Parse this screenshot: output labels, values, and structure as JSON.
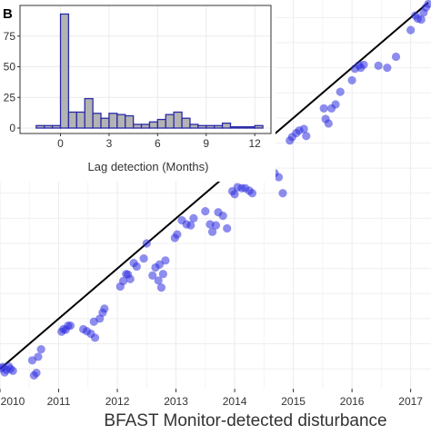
{
  "chart_data": [
    {
      "type": "scatter",
      "xlabel": "BFAST Monitor-detected disturbance",
      "xlim": [
        2010.0,
        2017.3
      ],
      "ylim": [
        2009.75,
        2017.35
      ],
      "x_ticks": [
        "2010",
        "2011",
        "2012",
        "2013",
        "2014",
        "2015",
        "2016",
        "2017"
      ],
      "grid": true,
      "reference_line": {
        "from": [
          2010.0,
          2010.0
        ],
        "to": [
          2017.3,
          2017.3
        ]
      },
      "point_color": "#2f2fe0",
      "points": [
        [
          2010.02,
          2010.01
        ],
        [
          2010.05,
          2010.04
        ],
        [
          2010.08,
          2009.93
        ],
        [
          2010.11,
          2009.98
        ],
        [
          2010.15,
          2010.05
        ],
        [
          2010.18,
          2010.0
        ],
        [
          2010.22,
          2009.96
        ],
        [
          2010.55,
          2010.17
        ],
        [
          2010.58,
          2009.87
        ],
        [
          2010.62,
          2009.92
        ],
        [
          2010.65,
          2010.24
        ],
        [
          2010.7,
          2010.39
        ],
        [
          2011.05,
          2010.74
        ],
        [
          2011.08,
          2010.79
        ],
        [
          2011.12,
          2010.78
        ],
        [
          2011.16,
          2010.86
        ],
        [
          2011.2,
          2010.86
        ],
        [
          2011.42,
          2010.79
        ],
        [
          2011.48,
          2010.75
        ],
        [
          2011.55,
          2010.7
        ],
        [
          2011.6,
          2010.94
        ],
        [
          2011.62,
          2010.62
        ],
        [
          2011.7,
          2011.0
        ],
        [
          2011.75,
          2011.12
        ],
        [
          2011.78,
          2011.2
        ],
        [
          2012.05,
          2011.64
        ],
        [
          2012.1,
          2011.75
        ],
        [
          2012.15,
          2011.89
        ],
        [
          2012.18,
          2011.88
        ],
        [
          2012.22,
          2011.79
        ],
        [
          2012.28,
          2012.11
        ],
        [
          2012.33,
          2012.04
        ],
        [
          2012.45,
          2012.2
        ],
        [
          2012.5,
          2012.5
        ],
        [
          2012.6,
          2011.86
        ],
        [
          2012.65,
          2012.02
        ],
        [
          2012.7,
          2011.76
        ],
        [
          2012.72,
          2012.08
        ],
        [
          2012.75,
          2011.62
        ],
        [
          2012.78,
          2011.89
        ],
        [
          2012.82,
          2012.16
        ],
        [
          2012.98,
          2012.61
        ],
        [
          2013.02,
          2012.68
        ],
        [
          2013.1,
          2012.96
        ],
        [
          2013.18,
          2012.88
        ],
        [
          2013.25,
          2012.86
        ],
        [
          2013.3,
          2013.0
        ],
        [
          2013.5,
          2013.14
        ],
        [
          2013.58,
          2012.88
        ],
        [
          2013.62,
          2012.73
        ],
        [
          2013.68,
          2012.86
        ],
        [
          2013.72,
          2013.12
        ],
        [
          2013.8,
          2013.05
        ],
        [
          2013.87,
          2012.8
        ],
        [
          2013.96,
          2013.54
        ],
        [
          2014.0,
          2013.48
        ],
        [
          2014.05,
          2013.62
        ],
        [
          2014.12,
          2013.6
        ],
        [
          2014.18,
          2013.6
        ],
        [
          2014.25,
          2013.55
        ],
        [
          2014.3,
          2013.5
        ],
        [
          2014.5,
          2013.98
        ],
        [
          2014.55,
          2013.84
        ],
        [
          2014.6,
          2014.0
        ],
        [
          2014.68,
          2013.9
        ],
        [
          2014.75,
          2013.82
        ],
        [
          2014.82,
          2013.5
        ],
        [
          2014.94,
          2014.55
        ],
        [
          2014.98,
          2014.62
        ],
        [
          2015.05,
          2014.7
        ],
        [
          2015.1,
          2014.75
        ],
        [
          2015.18,
          2014.78
        ],
        [
          2015.22,
          2014.64
        ],
        [
          2015.52,
          2015.19
        ],
        [
          2015.55,
          2014.98
        ],
        [
          2015.6,
          2014.89
        ],
        [
          2015.65,
          2015.19
        ],
        [
          2015.72,
          2015.27
        ],
        [
          2015.8,
          2015.52
        ],
        [
          2016.0,
          2015.75
        ],
        [
          2016.05,
          2015.98
        ],
        [
          2016.12,
          2016.05
        ],
        [
          2016.15,
          2016.0
        ],
        [
          2016.2,
          2016.06
        ],
        [
          2016.45,
          2016.04
        ],
        [
          2016.6,
          2016.0
        ],
        [
          2016.75,
          2016.22
        ],
        [
          2017.0,
          2016.75
        ],
        [
          2017.08,
          2017.04
        ],
        [
          2017.12,
          2016.98
        ],
        [
          2017.18,
          2016.96
        ],
        [
          2017.22,
          2017.1
        ],
        [
          2017.26,
          2017.2
        ],
        [
          2017.3,
          2017.27
        ]
      ]
    },
    {
      "type": "bar",
      "panel_label": "B",
      "xlabel": "Lag detection (Months)",
      "x_ticks": [
        "0",
        "3",
        "6",
        "9",
        "12"
      ],
      "y_ticks": [
        "0",
        "25",
        "50",
        "75"
      ],
      "xlim": [
        -2.5,
        13
      ],
      "ylim": [
        0,
        100
      ],
      "bin_width": 0.5,
      "bar_fill": "#b3b3b3",
      "bar_edge": "#2a2aa8",
      "bins": [
        [
          -1.5,
          2
        ],
        [
          -1,
          2
        ],
        [
          -0.5,
          2
        ],
        [
          0,
          93
        ],
        [
          0.5,
          13
        ],
        [
          1,
          13
        ],
        [
          1.5,
          24
        ],
        [
          2,
          12
        ],
        [
          2.5,
          8
        ],
        [
          3,
          12
        ],
        [
          3.5,
          11
        ],
        [
          4,
          10
        ],
        [
          4.5,
          3
        ],
        [
          5,
          3
        ],
        [
          5.5,
          5
        ],
        [
          6,
          7
        ],
        [
          6.5,
          11
        ],
        [
          7,
          13
        ],
        [
          7.5,
          8
        ],
        [
          8,
          3
        ],
        [
          8.5,
          2
        ],
        [
          9,
          2
        ],
        [
          9.5,
          2
        ],
        [
          10,
          4
        ],
        [
          10.5,
          1
        ],
        [
          11,
          1
        ],
        [
          11.5,
          1
        ],
        [
          12,
          2
        ]
      ]
    }
  ]
}
